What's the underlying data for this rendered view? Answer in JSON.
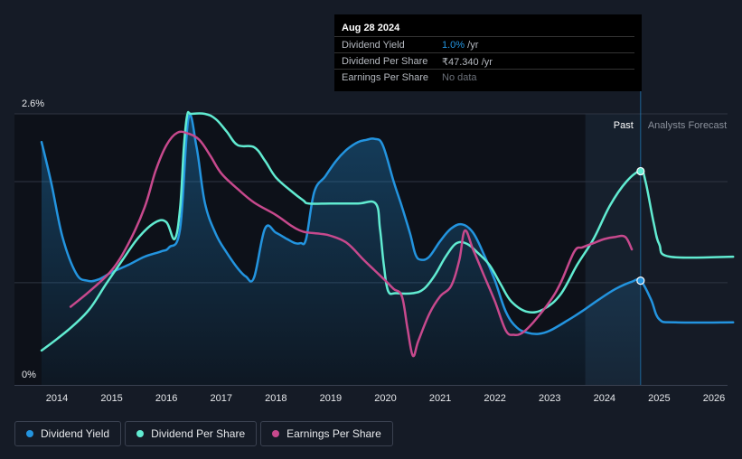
{
  "tooltip": {
    "date": "Aug 28 2024",
    "rows": [
      {
        "label": "Dividend Yield",
        "value": "1.0%",
        "unit": " /yr",
        "color": "#2394df"
      },
      {
        "label": "Dividend Per Share",
        "value": "₹47.340",
        "unit": " /yr",
        "color": "#b5b9c0"
      },
      {
        "label": "Earnings Per Share",
        "value": "No data",
        "unit": "",
        "color": "#6b7079"
      }
    ]
  },
  "legend": [
    {
      "label": "Dividend Yield",
      "color": "#2394df"
    },
    {
      "label": "Dividend Per Share",
      "color": "#61ebd1"
    },
    {
      "label": "Earnings Per Share",
      "color": "#c7498d"
    }
  ],
  "chart_data": {
    "type": "line",
    "title": "",
    "xlabel": "",
    "ylabel": "",
    "ylim": [
      0,
      2.6
    ],
    "xlim": [
      2013.25,
      2026.35
    ],
    "y_tick_labels": [
      "2.6%",
      "0%"
    ],
    "y_ticks": [
      2.6,
      0
    ],
    "gridlines": [
      2.6,
      1.95,
      0.98
    ],
    "x_ticks": [
      2014,
      2015,
      2016,
      2017,
      2018,
      2019,
      2020,
      2021,
      2022,
      2023,
      2024,
      2025,
      2026
    ],
    "x_tick_labels": [
      "2014",
      "2015",
      "2016",
      "2017",
      "2018",
      "2019",
      "2020",
      "2021",
      "2022",
      "2023",
      "2024",
      "2025",
      "2026"
    ],
    "past_label": "Past",
    "forecast_label": "Analysts Forecast",
    "past_start": 2023.65,
    "forecast_start": 2024.66,
    "series": [
      {
        "name": "Dividend Yield",
        "color": "#2394df",
        "x": [
          2013.72,
          2013.9,
          2014.1,
          2014.35,
          2014.55,
          2014.75,
          2015.0,
          2015.3,
          2015.6,
          2015.9,
          2016.05,
          2016.25,
          2016.4,
          2016.55,
          2016.7,
          2016.9,
          2017.1,
          2017.3,
          2017.45,
          2017.6,
          2017.8,
          2018.0,
          2018.2,
          2018.35,
          2018.45,
          2018.55,
          2018.7,
          2018.9,
          2019.1,
          2019.3,
          2019.5,
          2019.65,
          2019.8,
          2019.95,
          2020.15,
          2020.3,
          2020.45,
          2020.55,
          2020.65,
          2020.8,
          2021.0,
          2021.2,
          2021.4,
          2021.6,
          2021.8,
          2022.0,
          2022.2,
          2022.4,
          2022.6,
          2022.8,
          2023.0,
          2023.3,
          2023.6,
          2023.9,
          2024.2,
          2024.5,
          2024.66,
          2024.85,
          2025.0,
          2025.3,
          2026.35
        ],
        "values": [
          2.33,
          1.93,
          1.42,
          1.07,
          1.0,
          1.01,
          1.08,
          1.15,
          1.23,
          1.28,
          1.32,
          1.5,
          2.55,
          2.28,
          1.75,
          1.45,
          1.27,
          1.12,
          1.04,
          1.03,
          1.5,
          1.46,
          1.4,
          1.36,
          1.36,
          1.4,
          1.85,
          2.0,
          2.15,
          2.26,
          2.33,
          2.35,
          2.36,
          2.3,
          1.95,
          1.71,
          1.45,
          1.25,
          1.2,
          1.23,
          1.38,
          1.5,
          1.54,
          1.46,
          1.25,
          1.0,
          0.7,
          0.55,
          0.5,
          0.49,
          0.52,
          0.61,
          0.71,
          0.82,
          0.92,
          0.99,
          1.0,
          0.82,
          0.63,
          0.6,
          0.6
        ]
      },
      {
        "name": "Dividend Per Share",
        "color": "#61ebd1",
        "x": [
          2013.72,
          2014.0,
          2014.3,
          2014.6,
          2014.9,
          2015.2,
          2015.5,
          2015.8,
          2016.0,
          2016.15,
          2016.25,
          2016.32,
          2016.38,
          2016.45,
          2016.7,
          2016.9,
          2017.1,
          2017.3,
          2017.6,
          2017.8,
          2018.0,
          2018.3,
          2018.5,
          2018.6,
          2019.0,
          2019.5,
          2019.82,
          2019.9,
          2019.97,
          2020.05,
          2020.2,
          2020.5,
          2020.7,
          2020.9,
          2021.1,
          2021.3,
          2021.5,
          2021.7,
          2021.9,
          2022.1,
          2022.3,
          2022.6,
          2022.9,
          2023.2,
          2023.5,
          2023.8,
          2024.1,
          2024.4,
          2024.66,
          2024.75,
          2024.9,
          2025.0,
          2025.2,
          2026.35
        ],
        "values": [
          0.33,
          0.44,
          0.57,
          0.73,
          0.97,
          1.2,
          1.42,
          1.56,
          1.56,
          1.4,
          1.7,
          2.3,
          2.59,
          2.6,
          2.6,
          2.55,
          2.43,
          2.3,
          2.28,
          2.15,
          1.99,
          1.85,
          1.77,
          1.74,
          1.74,
          1.74,
          1.74,
          1.5,
          1.15,
          0.9,
          0.88,
          0.88,
          0.92,
          1.05,
          1.23,
          1.36,
          1.35,
          1.26,
          1.15,
          0.97,
          0.8,
          0.7,
          0.73,
          0.87,
          1.15,
          1.4,
          1.72,
          1.95,
          2.05,
          1.95,
          1.55,
          1.35,
          1.23,
          1.23
        ]
      },
      {
        "name": "Earnings Per Share",
        "color": "#c7498d",
        "x": [
          2014.25,
          2014.6,
          2015.0,
          2015.3,
          2015.6,
          2015.8,
          2016.0,
          2016.2,
          2016.4,
          2016.6,
          2016.8,
          2017.0,
          2017.3,
          2017.6,
          2018.0,
          2018.3,
          2018.5,
          2018.8,
          2019.0,
          2019.3,
          2019.6,
          2019.8,
          2020.0,
          2020.15,
          2020.3,
          2020.4,
          2020.5,
          2020.6,
          2020.8,
          2021.0,
          2021.2,
          2021.35,
          2021.45,
          2021.6,
          2021.8,
          2022.0,
          2022.2,
          2022.35,
          2022.5,
          2022.7,
          2023.0,
          2023.2,
          2023.45,
          2023.6,
          2023.8,
          2024.0,
          2024.2,
          2024.38,
          2024.5
        ],
        "values": [
          0.75,
          0.9,
          1.1,
          1.35,
          1.7,
          2.05,
          2.3,
          2.42,
          2.41,
          2.35,
          2.2,
          2.03,
          1.88,
          1.75,
          1.63,
          1.52,
          1.47,
          1.45,
          1.43,
          1.36,
          1.2,
          1.1,
          1.0,
          0.92,
          0.85,
          0.55,
          0.28,
          0.42,
          0.68,
          0.85,
          0.95,
          1.2,
          1.48,
          1.3,
          1.05,
          0.8,
          0.52,
          0.48,
          0.5,
          0.6,
          0.8,
          0.98,
          1.28,
          1.32,
          1.36,
          1.4,
          1.42,
          1.42,
          1.3
        ]
      }
    ],
    "markers": [
      {
        "series": "Dividend Per Share",
        "x": 2024.66,
        "value": 2.05
      },
      {
        "series": "Dividend Yield",
        "x": 2024.66,
        "value": 1.0
      }
    ]
  }
}
